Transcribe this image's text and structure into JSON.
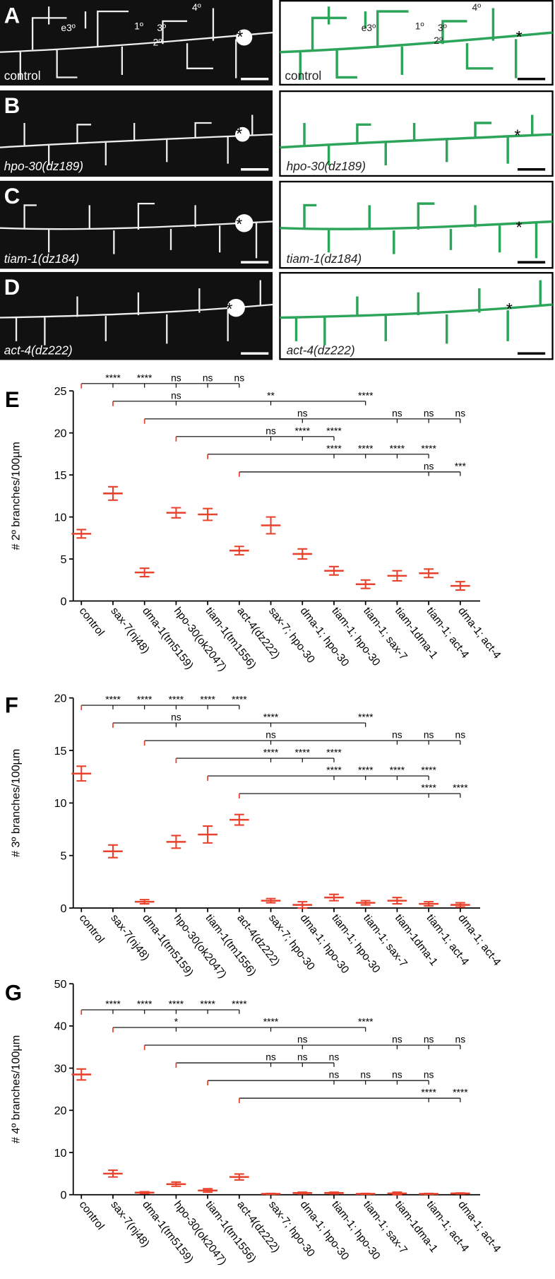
{
  "panels": [
    {
      "letter": "A",
      "genotype": "control",
      "labels": [
        "e3º",
        "1º",
        "3º",
        "2º",
        "4º"
      ]
    },
    {
      "letter": "B",
      "genotype": "hpo-30(dz189)"
    },
    {
      "letter": "C",
      "genotype": "tiam-1(dz184)"
    },
    {
      "letter": "D",
      "genotype": "act-4(dz222)"
    }
  ],
  "soma_marker": "*",
  "chart_data": [
    {
      "type": "dot",
      "letter": "E",
      "y_label": "# 2º branches/100µm",
      "color": "#e8412c",
      "categories": [
        "control",
        "sax-7(nj48)",
        "dma-1(tm5159)",
        "hpo-30(ok2047)",
        "tiam-1(tm1556)",
        "act-4(dz222)",
        "sax-7; hpo-30",
        "dma-1; hpo-30",
        "tiam-1; hpo-30",
        "tiam-1; sax-7",
        "tiam-1dma-1",
        "tiam-1; act-4",
        "dma-1; act-4"
      ],
      "values": [
        8,
        12.8,
        3.4,
        10.5,
        10.3,
        6,
        9,
        5.6,
        3.6,
        2,
        3,
        3.3,
        1.8
      ],
      "errors": [
        0.5,
        0.8,
        0.5,
        0.6,
        0.7,
        0.5,
        1,
        0.6,
        0.5,
        0.5,
        0.6,
        0.5,
        0.5
      ],
      "ylim": [
        0,
        25
      ],
      "yticks": [
        0,
        5,
        10,
        15,
        20,
        25
      ],
      "comparisons": [
        {
          "reference": "control",
          "labels": [
            null,
            "****",
            "****",
            "ns",
            "ns",
            "ns",
            null,
            null,
            null,
            null,
            null,
            null,
            null
          ]
        },
        {
          "reference": "sax-7(nj48)",
          "labels": [
            null,
            null,
            null,
            "ns",
            null,
            null,
            "**",
            null,
            null,
            "****",
            null,
            null,
            null
          ]
        },
        {
          "reference": "dma-1(tm5159)",
          "labels": [
            null,
            null,
            null,
            null,
            null,
            null,
            null,
            "ns",
            null,
            null,
            "ns",
            "ns",
            "ns"
          ]
        },
        {
          "reference": "hpo-30(ok2047)",
          "labels": [
            null,
            null,
            null,
            null,
            null,
            null,
            "ns",
            "****",
            "****",
            null,
            null,
            null,
            null
          ]
        },
        {
          "reference": "tiam-1(tm1556)",
          "labels": [
            null,
            null,
            null,
            null,
            null,
            null,
            null,
            null,
            "****",
            "****",
            "****",
            "****",
            null
          ]
        },
        {
          "reference": "act-4(dz222)",
          "labels": [
            null,
            null,
            null,
            null,
            null,
            null,
            null,
            null,
            null,
            null,
            null,
            "ns",
            "***"
          ]
        }
      ]
    },
    {
      "type": "dot",
      "letter": "F",
      "y_label": "# 3º branches/100µm",
      "color": "#e8412c",
      "categories": [
        "control",
        "sax-7(nj48)",
        "dma-1(tm5159)",
        "hpo-30(ok2047)",
        "tiam-1(tm1556)",
        "act-4(dz222)",
        "sax-7; hpo-30",
        "dma-1; hpo-30",
        "tiam-1; hpo-30",
        "tiam-1; sax-7",
        "tiam-1dma-1",
        "tiam-1; act-4",
        "dma-1; act-4"
      ],
      "values": [
        12.8,
        5.4,
        0.6,
        6.3,
        7,
        8.4,
        0.7,
        0.3,
        1,
        0.5,
        0.7,
        0.4,
        0.3
      ],
      "errors": [
        0.7,
        0.6,
        0.2,
        0.6,
        0.8,
        0.5,
        0.2,
        0.3,
        0.3,
        0.2,
        0.3,
        0.2,
        0.2
      ],
      "ylim": [
        0,
        20
      ],
      "yticks": [
        0,
        5,
        10,
        15,
        20
      ],
      "comparisons": [
        {
          "reference": "control",
          "labels": [
            null,
            "****",
            "****",
            "****",
            "****",
            "****",
            null,
            null,
            null,
            null,
            null,
            null,
            null
          ]
        },
        {
          "reference": "sax-7(nj48)",
          "labels": [
            null,
            null,
            null,
            "ns",
            null,
            null,
            "****",
            null,
            null,
            "****",
            null,
            null,
            null
          ]
        },
        {
          "reference": "dma-1(tm5159)",
          "labels": [
            null,
            null,
            null,
            null,
            null,
            null,
            "ns",
            null,
            null,
            null,
            "ns",
            "ns",
            "ns"
          ]
        },
        {
          "reference": "hpo-30(ok2047)",
          "labels": [
            null,
            null,
            null,
            null,
            null,
            null,
            "****",
            "****",
            "****",
            null,
            null,
            null,
            null
          ]
        },
        {
          "reference": "tiam-1(tm1556)",
          "labels": [
            null,
            null,
            null,
            null,
            null,
            null,
            null,
            null,
            "****",
            "****",
            "****",
            "****",
            null
          ]
        },
        {
          "reference": "act-4(dz222)",
          "labels": [
            null,
            null,
            null,
            null,
            null,
            null,
            null,
            null,
            null,
            null,
            null,
            "****",
            "****"
          ]
        }
      ]
    },
    {
      "type": "dot",
      "letter": "G",
      "y_label": "# 4º branches/100µm",
      "color": "#e8412c",
      "categories": [
        "control",
        "sax-7(nj48)",
        "dma-1(tm5159)",
        "hpo-30(ok2047)",
        "tiam-1(tm1556)",
        "act-4(dz222)",
        "sax-7; hpo-30",
        "dma-1; hpo-30",
        "tiam-1; hpo-30",
        "tiam-1; sax-7",
        "tiam-1dma-1",
        "tiam-1; act-4",
        "dma-1; act-4"
      ],
      "values": [
        28.5,
        5,
        0.5,
        2.5,
        1,
        4.2,
        0.2,
        0.4,
        0.4,
        0.2,
        0.3,
        0.2,
        0.3
      ],
      "errors": [
        1.3,
        0.8,
        0.2,
        0.5,
        0.4,
        0.7,
        0.1,
        0.2,
        0.2,
        0.1,
        0.3,
        0.1,
        0.1
      ],
      "ylim": [
        0,
        50
      ],
      "yticks": [
        0,
        10,
        20,
        30,
        40,
        50
      ],
      "comparisons": [
        {
          "reference": "control",
          "labels": [
            null,
            "****",
            "****",
            "****",
            "****",
            "****",
            null,
            null,
            null,
            null,
            null,
            null,
            null
          ]
        },
        {
          "reference": "sax-7(nj48)",
          "labels": [
            null,
            null,
            null,
            "*",
            null,
            null,
            "****",
            null,
            null,
            "****",
            null,
            null,
            null
          ]
        },
        {
          "reference": "dma-1(tm5159)",
          "labels": [
            null,
            null,
            null,
            null,
            null,
            null,
            null,
            "ns",
            null,
            null,
            "ns",
            "ns",
            "ns"
          ]
        },
        {
          "reference": "hpo-30(ok2047)",
          "labels": [
            null,
            null,
            null,
            null,
            null,
            null,
            "ns",
            "ns",
            "ns",
            null,
            null,
            null,
            null
          ]
        },
        {
          "reference": "tiam-1(tm1556)",
          "labels": [
            null,
            null,
            null,
            null,
            null,
            null,
            null,
            null,
            "ns",
            "ns",
            "ns",
            "ns",
            null
          ]
        },
        {
          "reference": "act-4(dz222)",
          "labels": [
            null,
            null,
            null,
            null,
            null,
            null,
            null,
            null,
            null,
            null,
            null,
            "****",
            "****"
          ]
        }
      ]
    }
  ]
}
